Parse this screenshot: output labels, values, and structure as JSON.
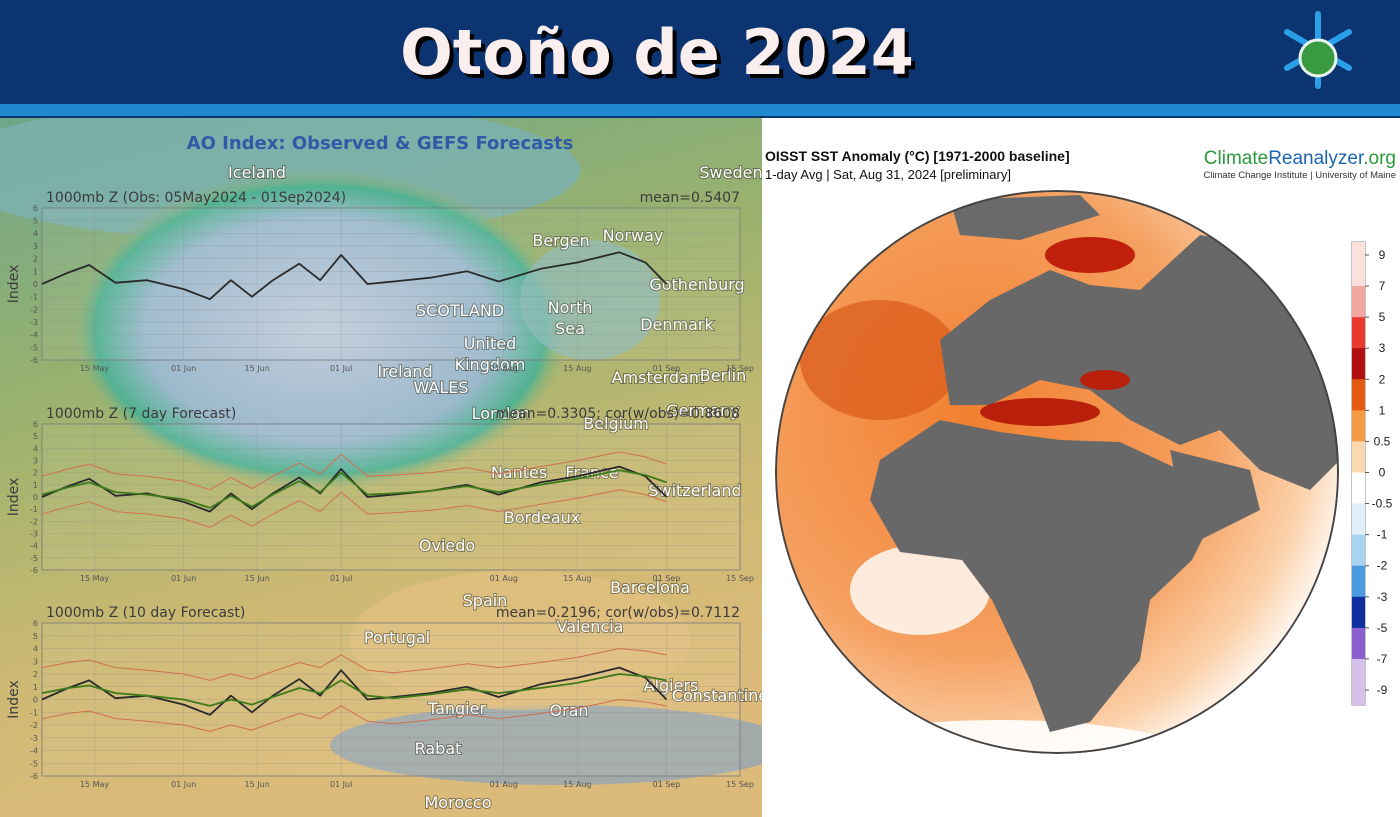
{
  "header": {
    "title": "Otoño de 2024"
  },
  "left_panel": {
    "title": "AO Index: Observed & GEFS Forecasts",
    "map_labels": [
      "Iceland",
      "Sweden",
      "Bergen",
      "Norway",
      "Gothenburg",
      "North",
      "Sea",
      "SCOTLAND",
      "Denmark",
      "United",
      "Kingdom",
      "Ireland",
      "Amsterdam",
      "Berlin",
      "WALES",
      "London",
      "Germany",
      "Belgium",
      "Nantes",
      "France",
      "Switzerland",
      "Bordeaux",
      "Oviedo",
      "Spain",
      "Barcelona",
      "Portugal",
      "Valencia",
      "Algiers",
      "Tangier",
      "Oran",
      "Constantine",
      "Rabat",
      "Morocco"
    ]
  },
  "chart_data": [
    {
      "type": "line",
      "title": "1000mb Z (Obs: 05May2024 - 01Sep2024)",
      "annotation": "mean=0.5407",
      "y_label": "Index",
      "x": [
        "2024-05-05",
        "2024-05-10",
        "2024-05-14",
        "2024-05-19",
        "2024-05-25",
        "2024-06-01",
        "2024-06-06",
        "2024-06-10",
        "2024-06-14",
        "2024-06-18",
        "2024-06-23",
        "2024-06-27",
        "2024-07-01",
        "2024-07-06",
        "2024-07-11",
        "2024-07-18",
        "2024-07-25",
        "2024-07-31",
        "2024-08-08",
        "2024-08-15",
        "2024-08-23",
        "2024-08-28",
        "2024-09-01"
      ],
      "xlim": [
        "2024-05-05",
        "2024-09-15"
      ],
      "xticks": [
        {
          "value": "2024-05-15",
          "label": "15 May"
        },
        {
          "value": "2024-06-01",
          "label": "01 Jun"
        },
        {
          "value": "2024-06-15",
          "label": "15 Jun"
        },
        {
          "value": "2024-07-01",
          "label": "01 Jul"
        },
        {
          "value": "2024-08-01",
          "label": "01 Aug"
        },
        {
          "value": "2024-08-15",
          "label": "15 Aug"
        },
        {
          "value": "2024-09-01",
          "label": "01 Sep"
        },
        {
          "value": "2024-09-15",
          "label": "15 Sep"
        }
      ],
      "ylim": [
        -6,
        6
      ],
      "yticks": [
        -6,
        -5,
        -4,
        -3,
        -2,
        -1,
        0,
        1,
        2,
        3,
        4,
        5,
        6
      ],
      "grid": true,
      "series": [
        {
          "color": "#2a2a2a",
          "values": [
            0,
            0.9,
            1.5,
            0.1,
            0.3,
            -0.4,
            -1.2,
            0.3,
            -1.0,
            0.3,
            1.6,
            0.3,
            2.3,
            0.0,
            0.2,
            0.5,
            1.0,
            0.2,
            1.2,
            1.7,
            2.5,
            1.7,
            0.0
          ]
        }
      ]
    },
    {
      "type": "line",
      "title": "1000mb Z (7 day Forecast)",
      "annotation": "mean=0.3305; cor(w/obs)=0.8608",
      "y_label": "Index",
      "x": [
        "2024-05-05",
        "2024-05-10",
        "2024-05-14",
        "2024-05-19",
        "2024-05-25",
        "2024-06-01",
        "2024-06-06",
        "2024-06-10",
        "2024-06-14",
        "2024-06-18",
        "2024-06-23",
        "2024-06-27",
        "2024-07-01",
        "2024-07-06",
        "2024-07-11",
        "2024-07-18",
        "2024-07-25",
        "2024-07-31",
        "2024-08-08",
        "2024-08-15",
        "2024-08-23",
        "2024-08-28",
        "2024-09-01"
      ],
      "xlim": [
        "2024-05-05",
        "2024-09-15"
      ],
      "xticks": [
        {
          "value": "2024-05-15",
          "label": "15 May"
        },
        {
          "value": "2024-06-01",
          "label": "01 Jun"
        },
        {
          "value": "2024-06-15",
          "label": "15 Jun"
        },
        {
          "value": "2024-07-01",
          "label": "01 Jul"
        },
        {
          "value": "2024-08-01",
          "label": "01 Aug"
        },
        {
          "value": "2024-08-15",
          "label": "15 Aug"
        },
        {
          "value": "2024-09-01",
          "label": "01 Sep"
        },
        {
          "value": "2024-09-15",
          "label": "15 Sep"
        }
      ],
      "ylim": [
        -6,
        6
      ],
      "yticks": [
        -6,
        -5,
        -4,
        -3,
        -2,
        -1,
        0,
        1,
        2,
        3,
        4,
        5,
        6
      ],
      "grid": true,
      "series": [
        {
          "color": "#d07050",
          "values": [
            1.7,
            2.3,
            2.7,
            1.9,
            1.7,
            1.3,
            0.6,
            1.6,
            0.7,
            1.7,
            2.8,
            1.9,
            3.5,
            1.7,
            1.8,
            2.0,
            2.4,
            1.9,
            2.5,
            3.0,
            3.7,
            3.3,
            2.7
          ]
        },
        {
          "color": "#d07050",
          "values": [
            -1.4,
            -0.8,
            -0.4,
            -1.2,
            -1.4,
            -1.8,
            -2.5,
            -1.5,
            -2.4,
            -1.4,
            -0.3,
            -1.2,
            0.4,
            -1.4,
            -1.3,
            -1.1,
            -0.7,
            -1.2,
            -0.6,
            -0.1,
            0.6,
            0.2,
            -0.4
          ]
        },
        {
          "color": "#2a2a2a",
          "values": [
            0,
            0.9,
            1.5,
            0.1,
            0.3,
            -0.4,
            -1.2,
            0.3,
            -1.0,
            0.3,
            1.6,
            0.3,
            2.3,
            0.0,
            0.2,
            0.5,
            1.0,
            0.2,
            1.2,
            1.7,
            2.5,
            1.7,
            0.0
          ]
        },
        {
          "color": "#3d7a1a",
          "values": [
            0.2,
            0.8,
            1.2,
            0.4,
            0.2,
            -0.2,
            -0.9,
            0.1,
            -0.8,
            0.2,
            1.3,
            0.4,
            2.0,
            0.2,
            0.3,
            0.5,
            0.9,
            0.4,
            1.0,
            1.5,
            2.2,
            1.8,
            1.2
          ]
        }
      ]
    },
    {
      "type": "line",
      "title": "1000mb Z (10 day Forecast)",
      "annotation": "mean=0.2196; cor(w/obs)=0.7112",
      "y_label": "Index",
      "x": [
        "2024-05-05",
        "2024-05-10",
        "2024-05-14",
        "2024-05-19",
        "2024-05-25",
        "2024-06-01",
        "2024-06-06",
        "2024-06-10",
        "2024-06-14",
        "2024-06-18",
        "2024-06-23",
        "2024-06-27",
        "2024-07-01",
        "2024-07-06",
        "2024-07-11",
        "2024-07-18",
        "2024-07-25",
        "2024-07-31",
        "2024-08-08",
        "2024-08-15",
        "2024-08-23",
        "2024-08-28",
        "2024-09-01"
      ],
      "xlim": [
        "2024-05-05",
        "2024-09-15"
      ],
      "xticks": [
        {
          "value": "2024-05-15",
          "label": "15 May"
        },
        {
          "value": "2024-06-01",
          "label": "01 Jun"
        },
        {
          "value": "2024-06-15",
          "label": "15 Jun"
        },
        {
          "value": "2024-07-01",
          "label": "01 Jul"
        },
        {
          "value": "2024-08-01",
          "label": "01 Aug"
        },
        {
          "value": "2024-08-15",
          "label": "15 Aug"
        },
        {
          "value": "2024-09-01",
          "label": "01 Sep"
        },
        {
          "value": "2024-09-15",
          "label": "15 Sep"
        }
      ],
      "ylim": [
        -6,
        6
      ],
      "yticks": [
        -6,
        -5,
        -4,
        -3,
        -2,
        -1,
        0,
        1,
        2,
        3,
        4,
        5,
        6
      ],
      "grid": true,
      "series": [
        {
          "color": "#d07050",
          "values": [
            2.5,
            2.9,
            3.1,
            2.5,
            2.3,
            2.0,
            1.5,
            2.0,
            1.6,
            2.2,
            2.9,
            2.5,
            3.5,
            2.3,
            2.1,
            2.4,
            2.8,
            2.5,
            2.9,
            3.3,
            4.0,
            3.8,
            3.5
          ]
        },
        {
          "color": "#d07050",
          "values": [
            -1.5,
            -1.1,
            -0.9,
            -1.5,
            -1.7,
            -2.0,
            -2.5,
            -2.0,
            -2.4,
            -1.8,
            -1.1,
            -1.5,
            -0.5,
            -1.7,
            -1.9,
            -1.6,
            -1.2,
            -1.5,
            -1.1,
            -0.7,
            0.0,
            -0.2,
            -0.5
          ]
        },
        {
          "color": "#2a2a2a",
          "values": [
            0,
            0.9,
            1.5,
            0.1,
            0.3,
            -0.4,
            -1.2,
            0.3,
            -1.0,
            0.3,
            1.6,
            0.3,
            2.3,
            0.0,
            0.2,
            0.5,
            1.0,
            0.2,
            1.2,
            1.7,
            2.5,
            1.7,
            0.0
          ]
        },
        {
          "color": "#3d7a1a",
          "values": [
            0.5,
            0.9,
            1.1,
            0.5,
            0.3,
            0.0,
            -0.5,
            0.0,
            -0.4,
            0.2,
            0.9,
            0.5,
            1.5,
            0.3,
            0.1,
            0.4,
            0.8,
            0.5,
            0.9,
            1.3,
            2.0,
            1.8,
            1.5
          ]
        }
      ]
    }
  ],
  "sst_map": {
    "title": "OISST SST Anomaly (°C) [1971-2000 baseline]",
    "subtitle": "1-day Avg | Sat, Aug 31, 2024 [preliminary]",
    "source": {
      "part1": "Climate",
      "part2": "Reanalyzer",
      "part3": ".org",
      "affiliation": "Climate Change Institute | University of Maine"
    },
    "colorbar": {
      "ticks": [
        9,
        7,
        5,
        3,
        2,
        1,
        0.5,
        0,
        -0.5,
        -1,
        -2,
        -3,
        -5,
        -7,
        -9
      ],
      "colors": [
        "#fbe0dc",
        "#f4a6a0",
        "#ea3a30",
        "#b01010",
        "#e45a10",
        "#f49a45",
        "#fcd8b0",
        "#ffffff",
        "#e0f0fa",
        "#a8d4f2",
        "#4a9ae0",
        "#1030a0",
        "#8a60d0",
        "#d8c0ec"
      ]
    }
  }
}
